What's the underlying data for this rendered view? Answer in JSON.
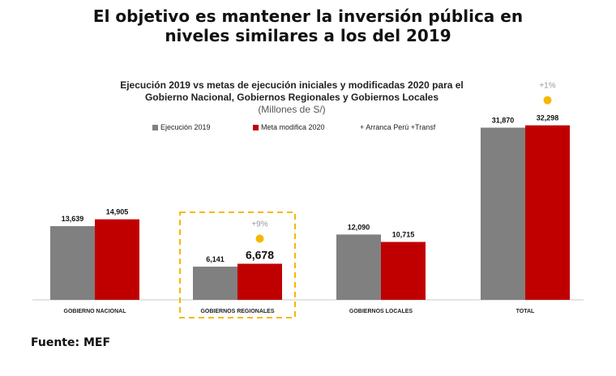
{
  "headline": {
    "line1": "El objetivo es mantener la inversión pública en",
    "line2": "niveles similares a los del 2019"
  },
  "source": "Fuente: MEF",
  "chart_data": {
    "type": "bar",
    "title_lines": [
      "Ejecución 2019 vs metas de ejecución iniciales y modificadas 2020 para el",
      "Gobierno Nacional, Gobiernos Regionales y Gobiernos Locales"
    ],
    "subtitle": "(Millones de S/)",
    "categories": [
      "GOBIERNO NACIONAL",
      "GOBIERNOS REGIONALES",
      "GOBIERNOS LOCALES",
      "TOTAL"
    ],
    "series": [
      {
        "name": "Ejecución 2019",
        "values": [
          13639,
          6141,
          12090,
          31870
        ],
        "labels": [
          "13,639",
          "6,141",
          "12,090",
          "31,870"
        ],
        "color": "#808080"
      },
      {
        "name": "Meta modifica 2020",
        "values": [
          14905,
          6678,
          10715,
          32298
        ],
        "labels": [
          "14,905",
          "6,678",
          "10,715",
          "32,298"
        ],
        "color": "#c00000"
      }
    ],
    "legend_note": "+ Arranca Perú +Transf",
    "annotations": [
      {
        "category": "GOBIERNOS REGIONALES",
        "text": "+9%",
        "dot_color": "#f5b800"
      },
      {
        "category": "TOTAL",
        "text": "+1%",
        "dot_color": "#f5b800"
      }
    ],
    "highlight_category": "GOBIERNOS REGIONALES",
    "highlight_color": "#f5b800",
    "ylim": [
      0,
      36000
    ],
    "grid": false,
    "legend_position": "top"
  }
}
